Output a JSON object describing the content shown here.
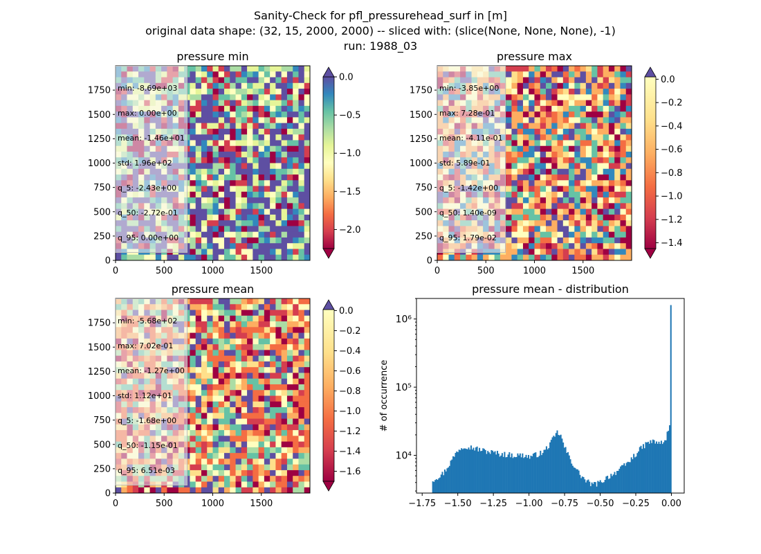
{
  "figure": {
    "title_lines": [
      "Sanity-Check for pfl_pressurehead_surf in [m]",
      "original data shape: (32, 15, 2000, 2000) -- sliced with: (slice(None, None, None), -1)",
      "run: 1988_03"
    ]
  },
  "chart_data": [
    {
      "type": "heatmap",
      "title": "pressure min",
      "xlim": [
        0,
        2000
      ],
      "ylim": [
        0,
        2000
      ],
      "xticks": [
        0,
        500,
        1000,
        1500
      ],
      "yticks": [
        0,
        250,
        500,
        750,
        1000,
        1250,
        1500,
        1750
      ],
      "colormap": "Spectral",
      "colorbar": {
        "range": [
          -2.25,
          0.0
        ],
        "ticks": [
          "0.0",
          "−0.5",
          "−1.0",
          "−1.5",
          "−2.0"
        ],
        "tick_values": [
          0.0,
          -0.5,
          -1.0,
          -1.5,
          -2.0
        ],
        "extend": "both"
      },
      "stats": [
        "min: -8.69e+03",
        "max: 0.00e+00",
        "mean: -1.46e+01",
        "std: 1.96e+02",
        "q_5: -2.43e+00",
        "q_50: -2.72e-01",
        "q_95: 0.00e+00"
      ]
    },
    {
      "type": "heatmap",
      "title": "pressure max",
      "xlim": [
        0,
        2000
      ],
      "ylim": [
        0,
        2000
      ],
      "xticks": [
        0,
        500,
        1000,
        1500
      ],
      "yticks": [
        0,
        250,
        500,
        750,
        1000,
        1250,
        1500,
        1750
      ],
      "colormap": "Spectral",
      "colorbar": {
        "range": [
          -1.45,
          0.02
        ],
        "ticks": [
          "0.0",
          "−0.2",
          "−0.4",
          "−0.6",
          "−0.8",
          "−1.0",
          "−1.2",
          "−1.4"
        ],
        "tick_values": [
          0.0,
          -0.2,
          -0.4,
          -0.6,
          -0.8,
          -1.0,
          -1.2,
          -1.4
        ],
        "extend": "both"
      },
      "stats": [
        "min: -3.85e+00",
        "max: 7.28e-01",
        "mean: -4.11e-01",
        "std: 5.89e-01",
        "q_5: -1.42e+00",
        "q_50: 1.40e-09",
        "q_95: 1.79e-02"
      ]
    },
    {
      "type": "heatmap",
      "title": "pressure mean",
      "xlim": [
        0,
        2000
      ],
      "ylim": [
        0,
        2000
      ],
      "xticks": [
        0,
        500,
        1000,
        1500
      ],
      "yticks": [
        0,
        250,
        500,
        750,
        1000,
        1250,
        1500,
        1750
      ],
      "colormap": "Spectral",
      "colorbar": {
        "range": [
          -1.7,
          0.01
        ],
        "ticks": [
          "0.0",
          "−0.2",
          "−0.4",
          "−0.6",
          "−0.8",
          "−1.0",
          "−1.2",
          "−1.4",
          "−1.6"
        ],
        "tick_values": [
          0.0,
          -0.2,
          -0.4,
          -0.6,
          -0.8,
          -1.0,
          -1.2,
          -1.4,
          -1.6
        ],
        "extend": "both"
      },
      "stats": [
        "min: -5.68e+02",
        "max: 7.02e-01",
        "mean: -1.27e+00",
        "std: 1.12e+01",
        "q_5: -1.68e+00",
        "q_50: -1.15e-01",
        "q_95: 6.51e-03"
      ]
    },
    {
      "type": "bar",
      "title": "pressure mean - distribution",
      "xlabel": "",
      "ylabel": "# of occurrence",
      "yscale": "log",
      "xlim": [
        -1.79,
        0.09
      ],
      "ylim": [
        2800,
        2000000
      ],
      "xticks": [
        "−1.75",
        "−1.50",
        "−1.25",
        "−1.00",
        "−0.75",
        "−0.50",
        "−0.25",
        "0.00"
      ],
      "xtick_values": [
        -1.75,
        -1.5,
        -1.25,
        -1.0,
        -0.75,
        -0.5,
        -0.25,
        0.0
      ],
      "yticks": [
        "10⁴",
        "10⁵",
        "10⁶"
      ],
      "ytick_values": [
        10000,
        100000,
        1000000
      ],
      "color": "#1f77b4",
      "bin_edges": [
        -1.68,
        0.0
      ],
      "bin_count": 200,
      "anchor_x": [
        -1.68,
        -1.6,
        -1.55,
        -1.5,
        -1.45,
        -1.4,
        -1.3,
        -1.2,
        -1.1,
        -1.03,
        -1.0,
        -0.9,
        -0.85,
        -0.8,
        -0.78,
        -0.75,
        -0.7,
        -0.65,
        -0.6,
        -0.55,
        -0.5,
        -0.45,
        -0.4,
        -0.35,
        -0.3,
        -0.25,
        -0.2,
        -0.15,
        -0.1,
        -0.05,
        -0.01,
        0.0
      ],
      "anchor_y": [
        4300,
        5500,
        8000,
        12000,
        14000,
        13000,
        11500,
        10500,
        10000,
        10000,
        9500,
        11000,
        15000,
        22000,
        20000,
        13000,
        8000,
        5500,
        4200,
        3700,
        4000,
        4800,
        5500,
        6500,
        8000,
        10500,
        13500,
        16000,
        15500,
        15000,
        28000,
        1600000
      ]
    }
  ]
}
